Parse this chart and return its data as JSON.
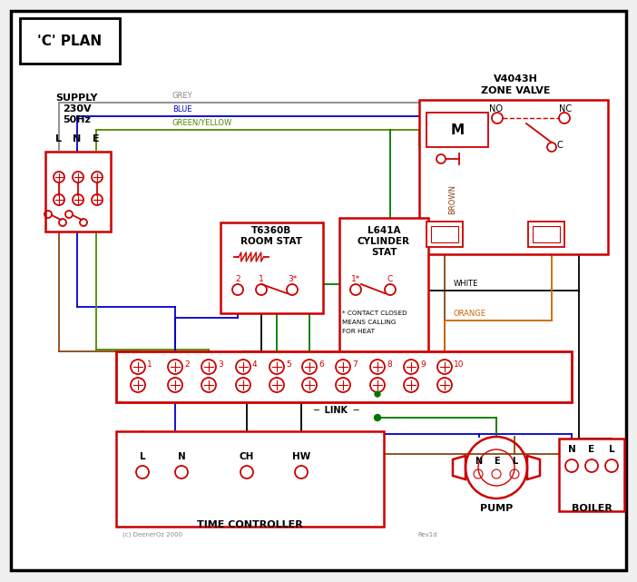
{
  "title": "'C' PLAN",
  "bg_color": "#f0f0f0",
  "inner_bg": "#ffffff",
  "border_color": "#000000",
  "red": "#cc0000",
  "blue": "#0000cc",
  "green": "#007700",
  "brown": "#8B4513",
  "grey": "#888888",
  "orange": "#cc6600",
  "green_yellow": "#558800",
  "supply_lines": [
    "SUPPLY",
    "230V",
    "50Hz"
  ],
  "lne_labels": [
    "L",
    "N",
    "E"
  ],
  "zone_valve_line1": "V4043H",
  "zone_valve_line2": "ZONE VALVE",
  "room_stat_line1": "T6360B",
  "room_stat_line2": "ROOM STAT",
  "cyl_stat_line1": "L641A",
  "cyl_stat_line2": "CYLINDER",
  "cyl_stat_line3": "STAT",
  "time_ctrl_label": "TIME CONTROLLER",
  "pump_label": "PUMP",
  "boiler_label": "BOILER",
  "terminal_labels": [
    "1",
    "2",
    "3",
    "4",
    "5",
    "6",
    "7",
    "8",
    "9",
    "10"
  ],
  "tc_labels": [
    "L",
    "N",
    "CH",
    "HW"
  ],
  "nel_labels": [
    "N",
    "E",
    "L"
  ],
  "wire_grey": "GREY",
  "wire_blue": "BLUE",
  "wire_gy": "GREEN/YELLOW",
  "wire_brown": "BROWN",
  "wire_white": "WHITE",
  "wire_orange": "ORANGE",
  "wire_link": "LINK",
  "note1": "* CONTACT CLOSED",
  "note2": "MEANS CALLING",
  "note3": "FOR HEAT",
  "copyright": "(c) DeenerOz 2000",
  "rev": "Rev1d",
  "no_label": "NO",
  "nc_label": "NC",
  "c_label": "C",
  "m_label": "M"
}
